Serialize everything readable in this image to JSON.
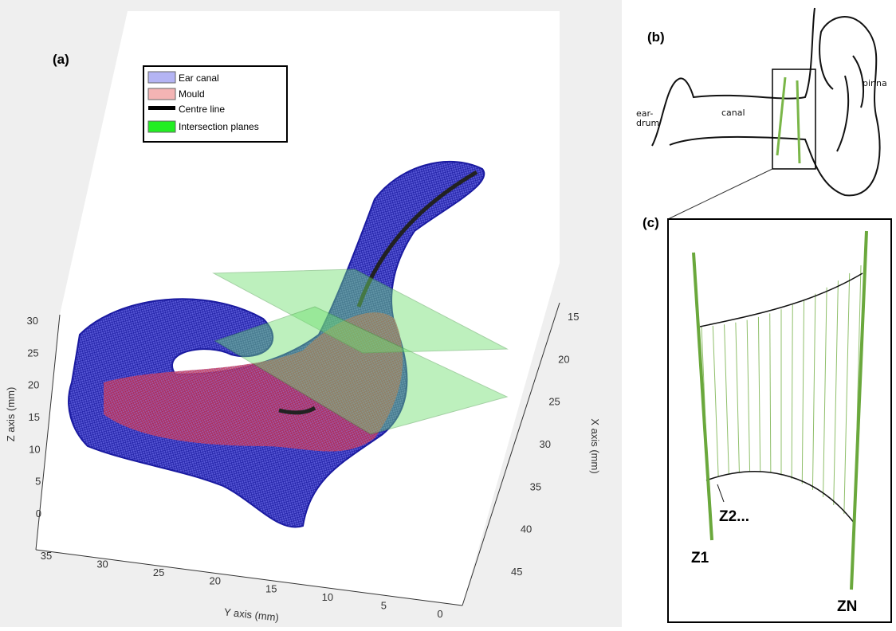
{
  "panel_a": {
    "label": "(a)",
    "legend": [
      "Ear canal",
      "Mould",
      "Centre line",
      "Intersection planes"
    ],
    "z_axis": {
      "title": "Z axis (mm)",
      "ticks": [
        30,
        25,
        20,
        15,
        10,
        5,
        0
      ]
    },
    "y_axis": {
      "title": "Y axis (mm)",
      "ticks": [
        35,
        30,
        25,
        20,
        15,
        10,
        5,
        0
      ]
    },
    "x_axis": {
      "title": "X axis (mm)",
      "ticks": [
        15,
        20,
        25,
        30,
        35,
        40,
        45
      ]
    }
  },
  "panel_b": {
    "label": "(b)",
    "eardrum_1": "ear-",
    "eardrum_2": "drum",
    "canal": "canal",
    "pinna": "pinna"
  },
  "panel_c": {
    "label": "(c)",
    "z1": "Z1",
    "z2": "Z2...",
    "zn": "ZN"
  }
}
